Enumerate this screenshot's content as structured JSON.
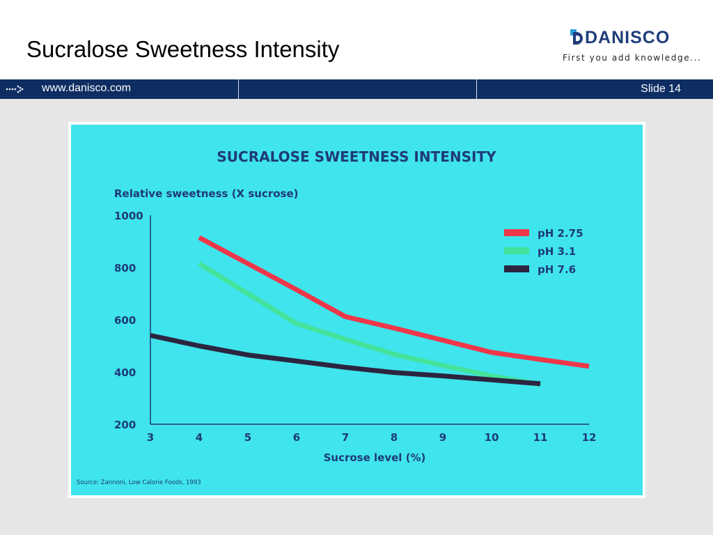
{
  "header": {
    "title": "Sucralose Sweetness Intensity",
    "logo_name": "DANISCO",
    "logo_tagline": "First you add knowledge..."
  },
  "navbar": {
    "url": "www.danisco.com",
    "slide_label": "Slide 14"
  },
  "colors": {
    "navbar": "#0e2e63",
    "chart_background": "#3fe4ec",
    "chart_text": "#1f3a78",
    "series_ph275": "#f0364a",
    "series_ph31": "#44e39b",
    "series_ph76": "#2b2540"
  },
  "chart_data": {
    "type": "line",
    "title": "SUCRALOSE SWEETNESS INTENSITY",
    "ylabel": "Relative sweetness (X sucrose)",
    "xlabel": "Sucrose level (%)",
    "xlim": [
      3,
      12
    ],
    "ylim": [
      200,
      1000
    ],
    "x_ticks": [
      3,
      4,
      5,
      6,
      7,
      8,
      9,
      10,
      11,
      12
    ],
    "y_ticks": [
      200,
      400,
      600,
      800,
      1000
    ],
    "legend_position": "top-right",
    "source": "Source: Zannoni, Low Calorie Foods, 1993",
    "series": [
      {
        "name": "pH 2.75",
        "color": "#f0364a",
        "points": [
          [
            4,
            915
          ],
          [
            5,
            815
          ],
          [
            6,
            715
          ],
          [
            7,
            612
          ],
          [
            8,
            568
          ],
          [
            9,
            522
          ],
          [
            10,
            475
          ],
          [
            11,
            448
          ],
          [
            12,
            422
          ]
        ]
      },
      {
        "name": "pH 3.1",
        "color": "#44e39b",
        "points": [
          [
            4,
            815
          ],
          [
            5,
            700
          ],
          [
            6,
            585
          ],
          [
            7,
            525
          ],
          [
            8,
            468
          ],
          [
            9,
            425
          ],
          [
            10,
            385
          ],
          [
            11,
            352
          ]
        ]
      },
      {
        "name": "pH 7.6",
        "color": "#2b2540",
        "points": [
          [
            3,
            540
          ],
          [
            4,
            500
          ],
          [
            5,
            465
          ],
          [
            6,
            442
          ],
          [
            7,
            418
          ],
          [
            8,
            398
          ],
          [
            9,
            385
          ],
          [
            10,
            370
          ],
          [
            11,
            355
          ]
        ]
      }
    ]
  }
}
